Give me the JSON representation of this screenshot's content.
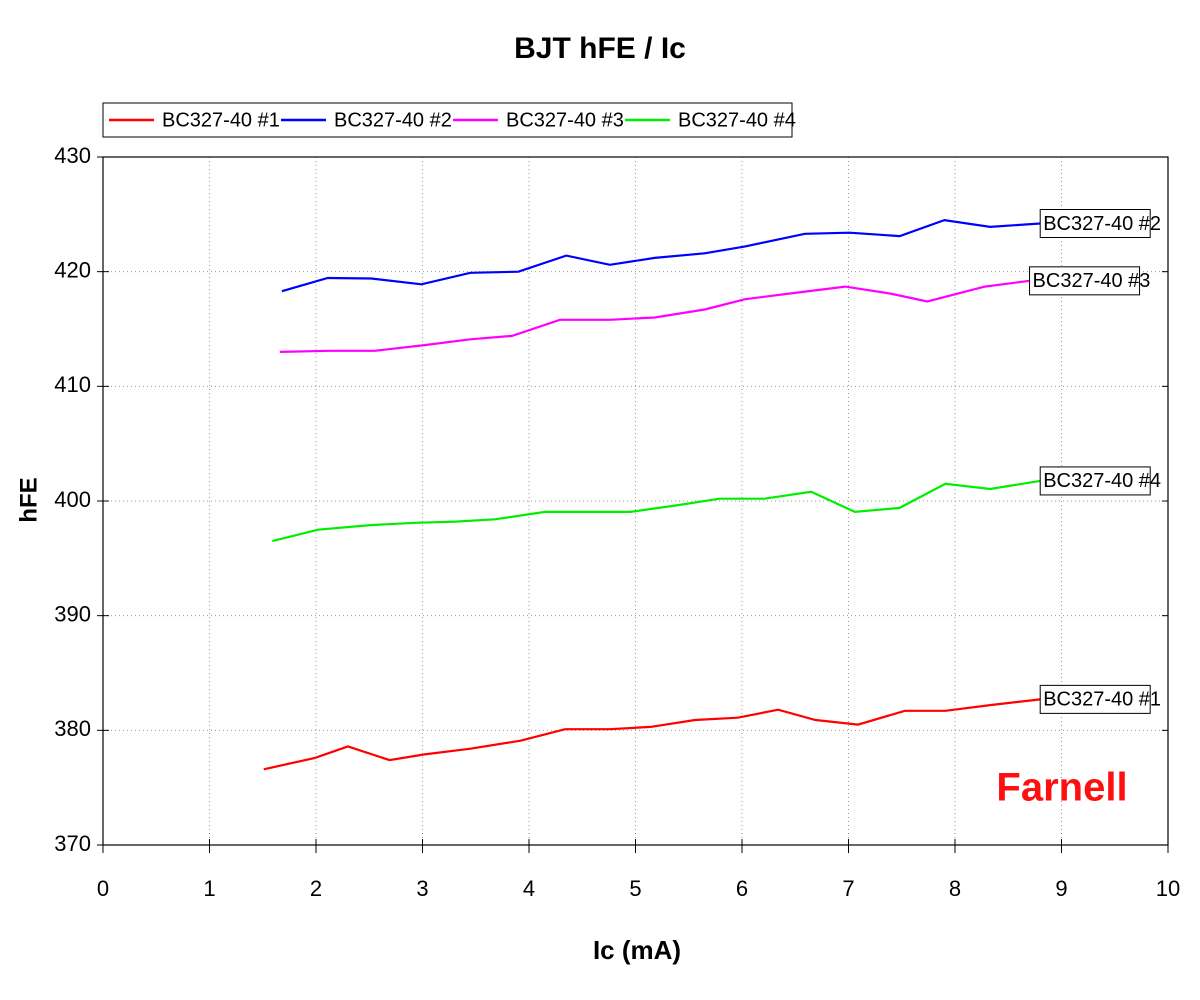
{
  "chart_data": {
    "type": "line",
    "title": "BJT hFE / Ic",
    "x_label": "Ic (mA)",
    "y_label": "hFE",
    "watermark": "Farnell",
    "xlim": [
      0,
      10
    ],
    "xticks": [
      0,
      1,
      2,
      3,
      4,
      5,
      6,
      7,
      8,
      9,
      10
    ],
    "ylim": [
      370,
      430
    ],
    "yticks": [
      370,
      380,
      390,
      400,
      410,
      420,
      430
    ],
    "grid": true,
    "legend": "top-left",
    "series": [
      {
        "name": "BC327-40 #1",
        "color": "#ff0000",
        "x": [
          1.51,
          1.99,
          2.3,
          2.69,
          3.02,
          3.45,
          3.92,
          4.34,
          4.76,
          5.14,
          5.56,
          5.96,
          6.34,
          6.69,
          7.09,
          7.53,
          7.91,
          8.33,
          8.8
        ],
        "values": [
          376.6,
          377.6,
          378.6,
          377.4,
          377.9,
          378.4,
          379.1,
          380.1,
          380.1,
          380.3,
          380.9,
          381.1,
          381.8,
          380.9,
          380.5,
          381.7,
          381.7,
          382.2,
          382.7
        ]
      },
      {
        "name": "BC327-40 #2",
        "color": "#0000ff",
        "x": [
          1.68,
          2.11,
          2.52,
          2.99,
          3.45,
          3.9,
          4.35,
          4.76,
          5.18,
          5.65,
          6.03,
          6.59,
          7.01,
          7.48,
          7.9,
          8.33,
          8.8
        ],
        "values": [
          418.3,
          419.45,
          419.4,
          418.9,
          419.9,
          420.0,
          421.4,
          420.6,
          421.2,
          421.6,
          422.2,
          423.3,
          423.4,
          423.1,
          424.5,
          423.9,
          424.2
        ]
      },
      {
        "name": "BC327-40 #3",
        "color": "#ff00ff",
        "x": [
          1.66,
          2.13,
          2.55,
          3.02,
          3.45,
          3.84,
          4.29,
          4.76,
          5.18,
          5.65,
          6.03,
          6.45,
          6.97,
          7.39,
          7.74,
          8.28,
          8.7
        ],
        "values": [
          413.0,
          413.1,
          413.1,
          413.6,
          414.1,
          414.4,
          415.8,
          415.8,
          416.0,
          416.7,
          417.6,
          418.1,
          418.7,
          418.1,
          417.4,
          418.7,
          419.2
        ]
      },
      {
        "name": "BC327-40 #4",
        "color": "#00ee00",
        "x": [
          1.59,
          2.02,
          2.51,
          2.93,
          3.31,
          3.68,
          4.15,
          4.57,
          4.95,
          5.37,
          5.79,
          6.21,
          6.65,
          7.06,
          7.48,
          7.91,
          8.33,
          8.8
        ],
        "values": [
          396.5,
          397.5,
          397.9,
          398.1,
          398.2,
          398.4,
          399.05,
          399.05,
          399.05,
          399.6,
          400.2,
          400.2,
          400.8,
          399.05,
          399.4,
          401.5,
          401.05,
          401.75
        ]
      }
    ]
  }
}
